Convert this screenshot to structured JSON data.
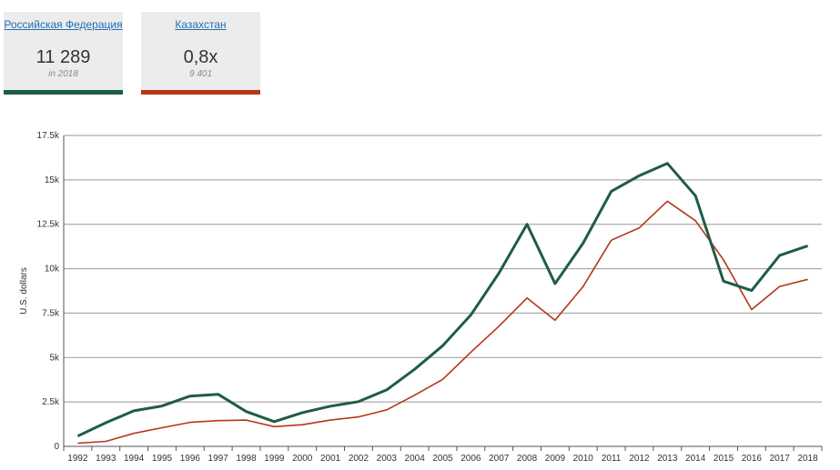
{
  "cards": [
    {
      "name": "Российская Федерация",
      "value": "11 289",
      "sub": "in 2018",
      "color": "#1f5c45"
    },
    {
      "name": "Казахстан",
      "value": "0,8x",
      "sub": "9 401",
      "color": "#b5361b"
    }
  ],
  "chart_data": {
    "type": "line",
    "title": "",
    "xlabel": "",
    "ylabel": "U.S. dollars",
    "x": [
      1992,
      1993,
      1994,
      1995,
      1996,
      1997,
      1998,
      1999,
      2000,
      2001,
      2002,
      2003,
      2004,
      2005,
      2006,
      2007,
      2008,
      2009,
      2010,
      2011,
      2012,
      2013,
      2014,
      2015,
      2016,
      2017,
      2018
    ],
    "ylim": [
      0,
      17500
    ],
    "yticks": [
      0,
      2500,
      5000,
      7500,
      10000,
      12500,
      15000,
      17500
    ],
    "ytick_labels": [
      "0",
      "2.5k",
      "5k",
      "7.5k",
      "10k",
      "12.5k",
      "15k",
      "17.5k"
    ],
    "series": [
      {
        "name": "Российская Федерация",
        "color": "#1f5c45",
        "values": [
          580,
          1330,
          2000,
          2270,
          2830,
          2930,
          1960,
          1390,
          1900,
          2260,
          2520,
          3180,
          4340,
          5670,
          7400,
          9750,
          12500,
          9160,
          11440,
          14350,
          15240,
          15930,
          14100,
          9300,
          8770,
          10750,
          11289
        ]
      },
      {
        "name": "Казахстан",
        "color": "#b5361b",
        "values": [
          180,
          280,
          730,
          1050,
          1350,
          1450,
          1480,
          1110,
          1220,
          1480,
          1660,
          2050,
          2880,
          3770,
          5300,
          6760,
          8350,
          7100,
          9000,
          11600,
          12300,
          13800,
          12700,
          10500,
          7700,
          9000,
          9401
        ]
      }
    ]
  }
}
